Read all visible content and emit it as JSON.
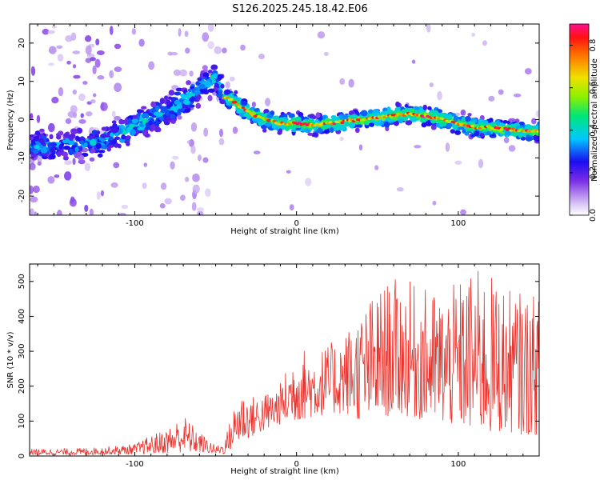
{
  "figure_title": "S126.2025.245.18.42.E06",
  "colors": {
    "snr_line": "#e8332d",
    "frame": "#000000",
    "background": "#ffffff"
  },
  "chart_data": [
    {
      "type": "heatmap",
      "name": "spectrogram",
      "title": "S126.2025.245.18.42.E06",
      "xlabel": "Height of straight line (km)",
      "ylabel": "Frequency (Hz)",
      "xlim": [
        -165,
        150
      ],
      "ylim": [
        -25,
        25
      ],
      "xticks": [
        -100,
        0,
        100
      ],
      "yticks": [
        -20,
        -10,
        0,
        10,
        20
      ],
      "ridge": {
        "description": "dominant frequency vs height",
        "x": [
          -165,
          -150,
          -140,
          -130,
          -120,
          -110,
          -100,
          -90,
          -80,
          -70,
          -60,
          -50,
          -45,
          -40,
          -30,
          -20,
          -10,
          0,
          10,
          20,
          30,
          40,
          50,
          60,
          70,
          80,
          90,
          100,
          110,
          120,
          130,
          140,
          150
        ],
        "y": [
          -7,
          -7,
          -6.5,
          -6,
          -6,
          -4,
          -1.5,
          0,
          2,
          5,
          8,
          11,
          6,
          5,
          2,
          0,
          -1,
          -1,
          -1.5,
          -1,
          -0.5,
          0,
          0.5,
          1,
          1.5,
          1,
          0,
          -1,
          -2,
          -2,
          -2.5,
          -3,
          -3
        ]
      },
      "colorbar": {
        "label": "Normalized spectral amplitude",
        "range": [
          0.0,
          0.9
        ],
        "ticks": [
          0.0,
          0.2,
          0.4,
          0.6,
          0.8
        ],
        "tick_labels": [
          "0.0",
          "0.2",
          "0.4",
          "0.6",
          "0.8"
        ]
      }
    },
    {
      "type": "line",
      "name": "snr",
      "xlabel": "Height of straight line (km)",
      "ylabel": "SNR (10 * v/v)",
      "xlim": [
        -165,
        150
      ],
      "ylim": [
        0,
        550
      ],
      "xticks": [
        -100,
        0,
        100
      ],
      "yticks": [
        0,
        100,
        200,
        300,
        400,
        500
      ],
      "envelope": {
        "description": "approximate running min/max of the noisy SNR trace",
        "x": [
          -165,
          -140,
          -120,
          -100,
          -90,
          -80,
          -70,
          -60,
          -50,
          -45,
          -40,
          -35,
          -30,
          -20,
          -10,
          0,
          10,
          20,
          30,
          40,
          50,
          60,
          70,
          80,
          90,
          100,
          110,
          120,
          130,
          140,
          150
        ],
        "low": [
          3,
          3,
          4,
          5,
          6,
          8,
          10,
          10,
          7,
          5,
          20,
          40,
          50,
          70,
          90,
          100,
          110,
          120,
          120,
          100,
          100,
          120,
          110,
          100,
          90,
          80,
          70,
          60,
          70,
          60,
          60
        ],
        "high": [
          20,
          22,
          26,
          35,
          60,
          80,
          120,
          70,
          30,
          40,
          120,
          200,
          170,
          180,
          210,
          320,
          300,
          320,
          360,
          420,
          480,
          510,
          500,
          480,
          470,
          500,
          540,
          520,
          480,
          470,
          460
        ]
      }
    }
  ]
}
